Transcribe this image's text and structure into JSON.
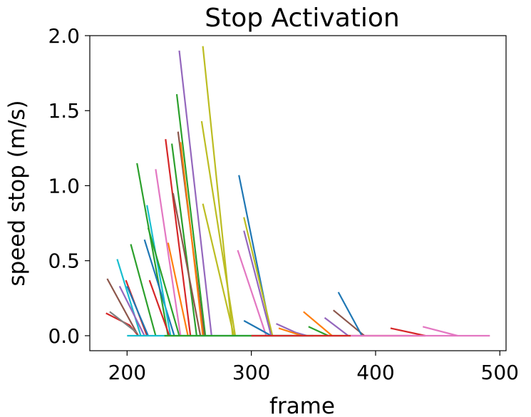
{
  "chart_data": {
    "type": "line",
    "title": "Stop Activation",
    "xlabel": "frame",
    "ylabel": "speed stop (m/s)",
    "xlim": [
      170,
      505
    ],
    "ylim": [
      -0.1,
      2.0
    ],
    "xticks": [
      200,
      300,
      400,
      500
    ],
    "yticks": [
      0.0,
      0.5,
      1.0,
      1.5,
      2.0
    ],
    "xtick_labels": [
      "200",
      "300",
      "400",
      "500"
    ],
    "ytick_labels": [
      "0.0",
      "0.5",
      "1.0",
      "1.5",
      "2.0"
    ],
    "grid": false,
    "legend": "none",
    "palette": [
      "#1f77b4",
      "#ff7f0e",
      "#2ca02c",
      "#d62728",
      "#9467bd",
      "#8c564b",
      "#e377c2",
      "#7f7f7f",
      "#bcbd22",
      "#17becf"
    ],
    "series": [
      {
        "color_index": 3,
        "points": [
          [
            183,
            0.15
          ],
          [
            202,
            0.07
          ],
          [
            209,
            0.0
          ]
        ]
      },
      {
        "color_index": 5,
        "points": [
          [
            184,
            0.38
          ],
          [
            209,
            0.0
          ]
        ]
      },
      {
        "color_index": 7,
        "points": [
          [
            186,
            0.16
          ],
          [
            208,
            0.02
          ]
        ]
      },
      {
        "color_index": 9,
        "points": [
          [
            192,
            0.51
          ],
          [
            211,
            0.0
          ]
        ]
      },
      {
        "color_index": 4,
        "points": [
          [
            194,
            0.33
          ],
          [
            214,
            0.0
          ]
        ]
      },
      {
        "color_index": 3,
        "points": [
          [
            199,
            0.37
          ],
          [
            216,
            0.0
          ]
        ]
      },
      {
        "color_index": 0,
        "points": [
          [
            200,
            0.33
          ],
          [
            217,
            0.0
          ]
        ]
      },
      {
        "color_index": 2,
        "points": [
          [
            203,
            0.61
          ],
          [
            223,
            0.0
          ]
        ]
      },
      {
        "color_index": 2,
        "points": [
          [
            208,
            1.15
          ],
          [
            233,
            0.0
          ]
        ]
      },
      {
        "color_index": 0,
        "points": [
          [
            214,
            0.64
          ],
          [
            238,
            0.0
          ]
        ]
      },
      {
        "color_index": 9,
        "points": [
          [
            216,
            0.87
          ],
          [
            235,
            0.0
          ]
        ]
      },
      {
        "color_index": 2,
        "points": [
          [
            217,
            0.72
          ],
          [
            242,
            0.0
          ]
        ]
      },
      {
        "color_index": 3,
        "points": [
          [
            218,
            0.37
          ],
          [
            234,
            0.0
          ]
        ]
      },
      {
        "color_index": 6,
        "points": [
          [
            223,
            1.11
          ],
          [
            243,
            0.0
          ]
        ]
      },
      {
        "color_index": 3,
        "points": [
          [
            231,
            1.31
          ],
          [
            251,
            0.0
          ]
        ]
      },
      {
        "color_index": 1,
        "points": [
          [
            233,
            0.62
          ],
          [
            249,
            0.0
          ]
        ]
      },
      {
        "color_index": 2,
        "points": [
          [
            236,
            1.28
          ],
          [
            256,
            0.0
          ]
        ]
      },
      {
        "color_index": 5,
        "points": [
          [
            237,
            0.95
          ],
          [
            259,
            0.0
          ]
        ]
      },
      {
        "color_index": 2,
        "points": [
          [
            240,
            1.61
          ],
          [
            263,
            0.0
          ]
        ]
      },
      {
        "color_index": 5,
        "points": [
          [
            241,
            1.36
          ],
          [
            262,
            0.0
          ]
        ]
      },
      {
        "color_index": 4,
        "points": [
          [
            242,
            1.9
          ],
          [
            268,
            0.0
          ]
        ]
      },
      {
        "color_index": 1,
        "points": [
          [
            243,
            1.29
          ],
          [
            261,
            0.0
          ]
        ]
      },
      {
        "color_index": 8,
        "points": [
          [
            260,
            1.43
          ],
          [
            287,
            0.0
          ]
        ]
      },
      {
        "color_index": 8,
        "points": [
          [
            261,
            1.93
          ],
          [
            285,
            0.0
          ]
        ]
      },
      {
        "color_index": 8,
        "points": [
          [
            261,
            0.88
          ],
          [
            286,
            0.0
          ]
        ]
      },
      {
        "color_index": 6,
        "points": [
          [
            289,
            0.57
          ],
          [
            312,
            0.0
          ]
        ]
      },
      {
        "color_index": 0,
        "points": [
          [
            290,
            1.07
          ],
          [
            316,
            0.01
          ]
        ]
      },
      {
        "color_index": 0,
        "points": [
          [
            294,
            0.1
          ],
          [
            305,
            0.05
          ],
          [
            316,
            0.0
          ]
        ]
      },
      {
        "color_index": 8,
        "points": [
          [
            294,
            0.79
          ],
          [
            317,
            0.0
          ]
        ]
      },
      {
        "color_index": 4,
        "points": [
          [
            294,
            0.7
          ],
          [
            316,
            0.0
          ]
        ]
      },
      {
        "color_index": 4,
        "points": [
          [
            320,
            0.08
          ],
          [
            336,
            0.02
          ],
          [
            345,
            0.0
          ]
        ]
      },
      {
        "color_index": 1,
        "points": [
          [
            322,
            0.05
          ],
          [
            341,
            0.0
          ]
        ]
      },
      {
        "color_index": 1,
        "points": [
          [
            342,
            0.16
          ],
          [
            365,
            0.0
          ]
        ]
      },
      {
        "color_index": 2,
        "points": [
          [
            346,
            0.06
          ],
          [
            362,
            0.0
          ]
        ]
      },
      {
        "color_index": 4,
        "points": [
          [
            359,
            0.12
          ],
          [
            378,
            0.0
          ]
        ]
      },
      {
        "color_index": 5,
        "points": [
          [
            366,
            0.17
          ],
          [
            391,
            0.0
          ]
        ]
      },
      {
        "color_index": 0,
        "points": [
          [
            370,
            0.29
          ],
          [
            389,
            0.0
          ]
        ]
      },
      {
        "color_index": 3,
        "points": [
          [
            412,
            0.05
          ],
          [
            440,
            0.0
          ]
        ]
      },
      {
        "color_index": 6,
        "points": [
          [
            438,
            0.06
          ],
          [
            466,
            0.0
          ]
        ]
      },
      {
        "color_index": 9,
        "points": [
          [
            200,
            0.0
          ],
          [
            350,
            0.0
          ]
        ]
      },
      {
        "color_index": 2,
        "points": [
          [
            230,
            0.0
          ],
          [
            380,
            0.0
          ]
        ]
      },
      {
        "color_index": 3,
        "points": [
          [
            300,
            0.0
          ],
          [
            440,
            0.0
          ]
        ]
      },
      {
        "color_index": 6,
        "points": [
          [
            380,
            0.0
          ],
          [
            492,
            0.0
          ]
        ]
      }
    ]
  }
}
